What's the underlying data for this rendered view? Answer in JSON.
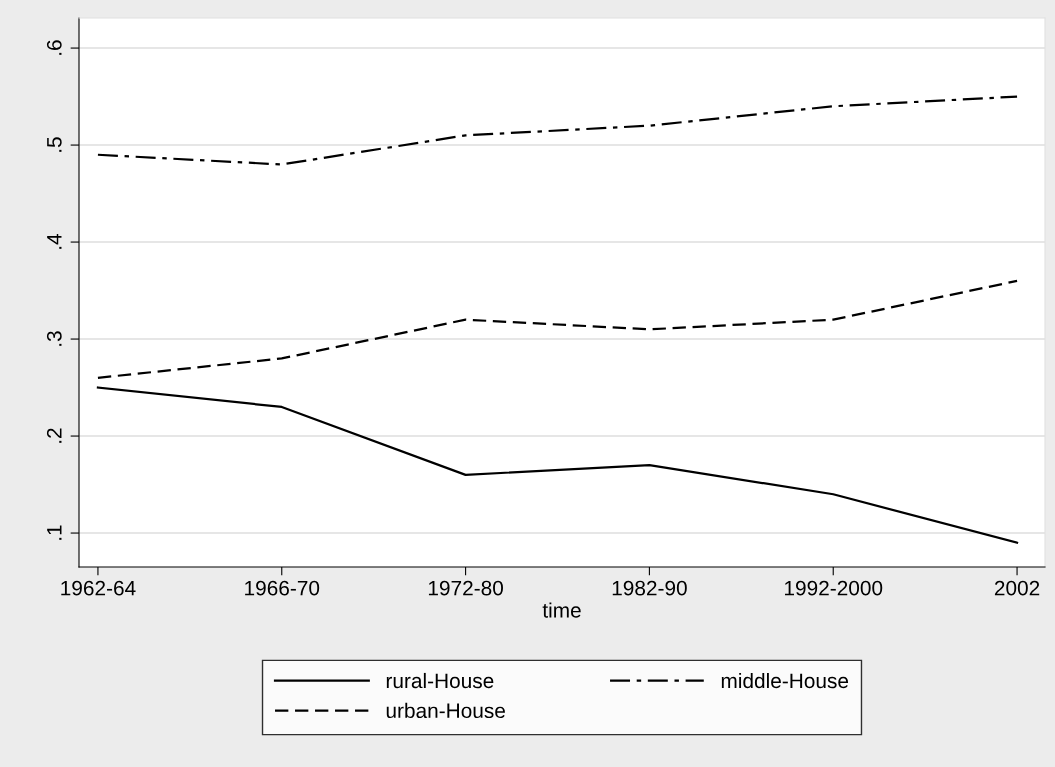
{
  "chart_data": {
    "type": "line",
    "xlabel": "time",
    "categories": [
      "1962-64",
      "1966-70",
      "1972-80",
      "1982-90",
      "1992-2000",
      "2002"
    ],
    "series": [
      {
        "name": "rural-House",
        "color": "#000000",
        "line_style": "solid",
        "values": [
          0.25,
          0.23,
          0.16,
          0.17,
          0.14,
          0.09
        ]
      },
      {
        "name": "urban-House",
        "color": "#000000",
        "line_style": "dashed",
        "values": [
          0.26,
          0.28,
          0.32,
          0.31,
          0.32,
          0.36
        ]
      },
      {
        "name": "middle-House",
        "color": "#000000",
        "line_style": "dashdot",
        "values": [
          0.49,
          0.48,
          0.51,
          0.52,
          0.54,
          0.55
        ]
      }
    ],
    "ylim": [
      0.065,
      0.631
    ],
    "yticks": [
      {
        "value": 0.1,
        "label": ".1"
      },
      {
        "value": 0.2,
        "label": ".2"
      },
      {
        "value": 0.3,
        "label": ".3"
      },
      {
        "value": 0.4,
        "label": ".4"
      },
      {
        "value": 0.5,
        "label": ".5"
      },
      {
        "value": 0.6,
        "label": ".6"
      }
    ],
    "grid": "y",
    "legend": "bottom",
    "marker": "none"
  }
}
